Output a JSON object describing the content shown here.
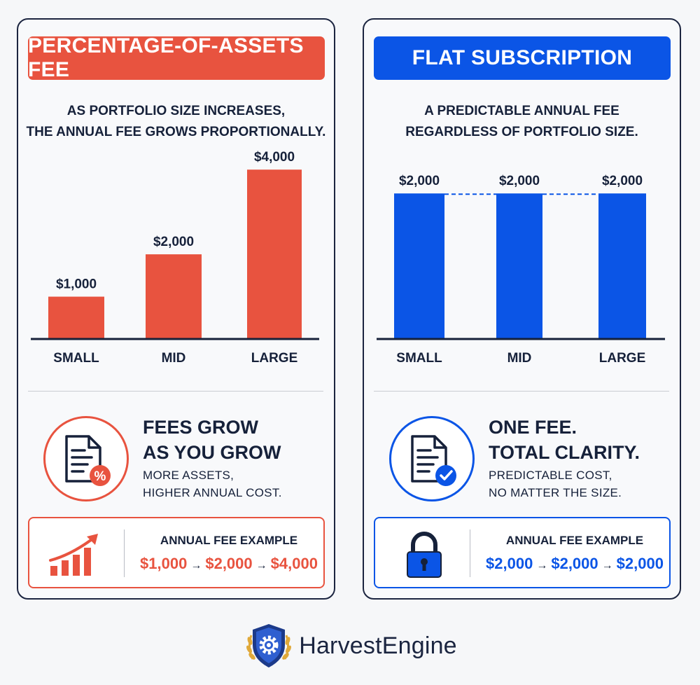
{
  "colors": {
    "red": "#e8533f",
    "blue": "#0b55e6",
    "navy": "#16213a"
  },
  "left": {
    "header": "PERCENTAGE-OF-ASSETS FEE",
    "subtitle": [
      "AS PORTFOLIO SIZE INCREASES,",
      "THE ANNUAL FEE GROWS PROPORTIONALLY."
    ],
    "message_title": [
      "FEES GROW",
      "AS YOU GROW"
    ],
    "message_sub": [
      "MORE ASSETS,",
      "HIGHER ANNUAL COST."
    ],
    "example_label": "ANNUAL FEE EXAMPLE",
    "example_values": [
      "$1,000",
      "$2,000",
      "$4,000"
    ],
    "arrow": "→",
    "circle_icon": "document-percent-icon",
    "example_icon": "growth-bars-arrow-icon"
  },
  "right": {
    "header": "FLAT SUBSCRIPTION",
    "subtitle": [
      "A PREDICTABLE ANNUAL FEE",
      "REGARDLESS OF PORTFOLIO SIZE."
    ],
    "message_title": [
      "ONE FEE.",
      "TOTAL CLARITY."
    ],
    "message_sub": [
      "PREDICTABLE COST,",
      "NO MATTER THE SIZE."
    ],
    "example_label": "ANNUAL FEE EXAMPLE",
    "example_values": [
      "$2,000",
      "$2,000",
      "$2,000"
    ],
    "arrow": "→",
    "circle_icon": "document-check-icon",
    "example_icon": "padlock-icon"
  },
  "chart_data": [
    {
      "type": "bar",
      "title": "PERCENTAGE-OF-ASSETS FEE",
      "categories": [
        "SMALL",
        "MID",
        "LARGE"
      ],
      "values": [
        1000,
        2000,
        4000
      ],
      "value_labels": [
        "$1,000",
        "$2,000",
        "$4,000"
      ],
      "ylim": [
        0,
        4400
      ],
      "grid": false,
      "color": "#e8533f"
    },
    {
      "type": "bar",
      "title": "FLAT SUBSCRIPTION",
      "categories": [
        "SMALL",
        "MID",
        "LARGE"
      ],
      "values": [
        2000,
        2000,
        2000
      ],
      "value_labels": [
        "$2,000",
        "$2,000",
        "$2,000"
      ],
      "ylim": [
        0,
        2560
      ],
      "grid": false,
      "connector": "dashed",
      "color": "#0b55e6"
    }
  ],
  "brand": {
    "name": "HarvestEngine",
    "logo_icon": "shield-gear-wheat-logo"
  }
}
